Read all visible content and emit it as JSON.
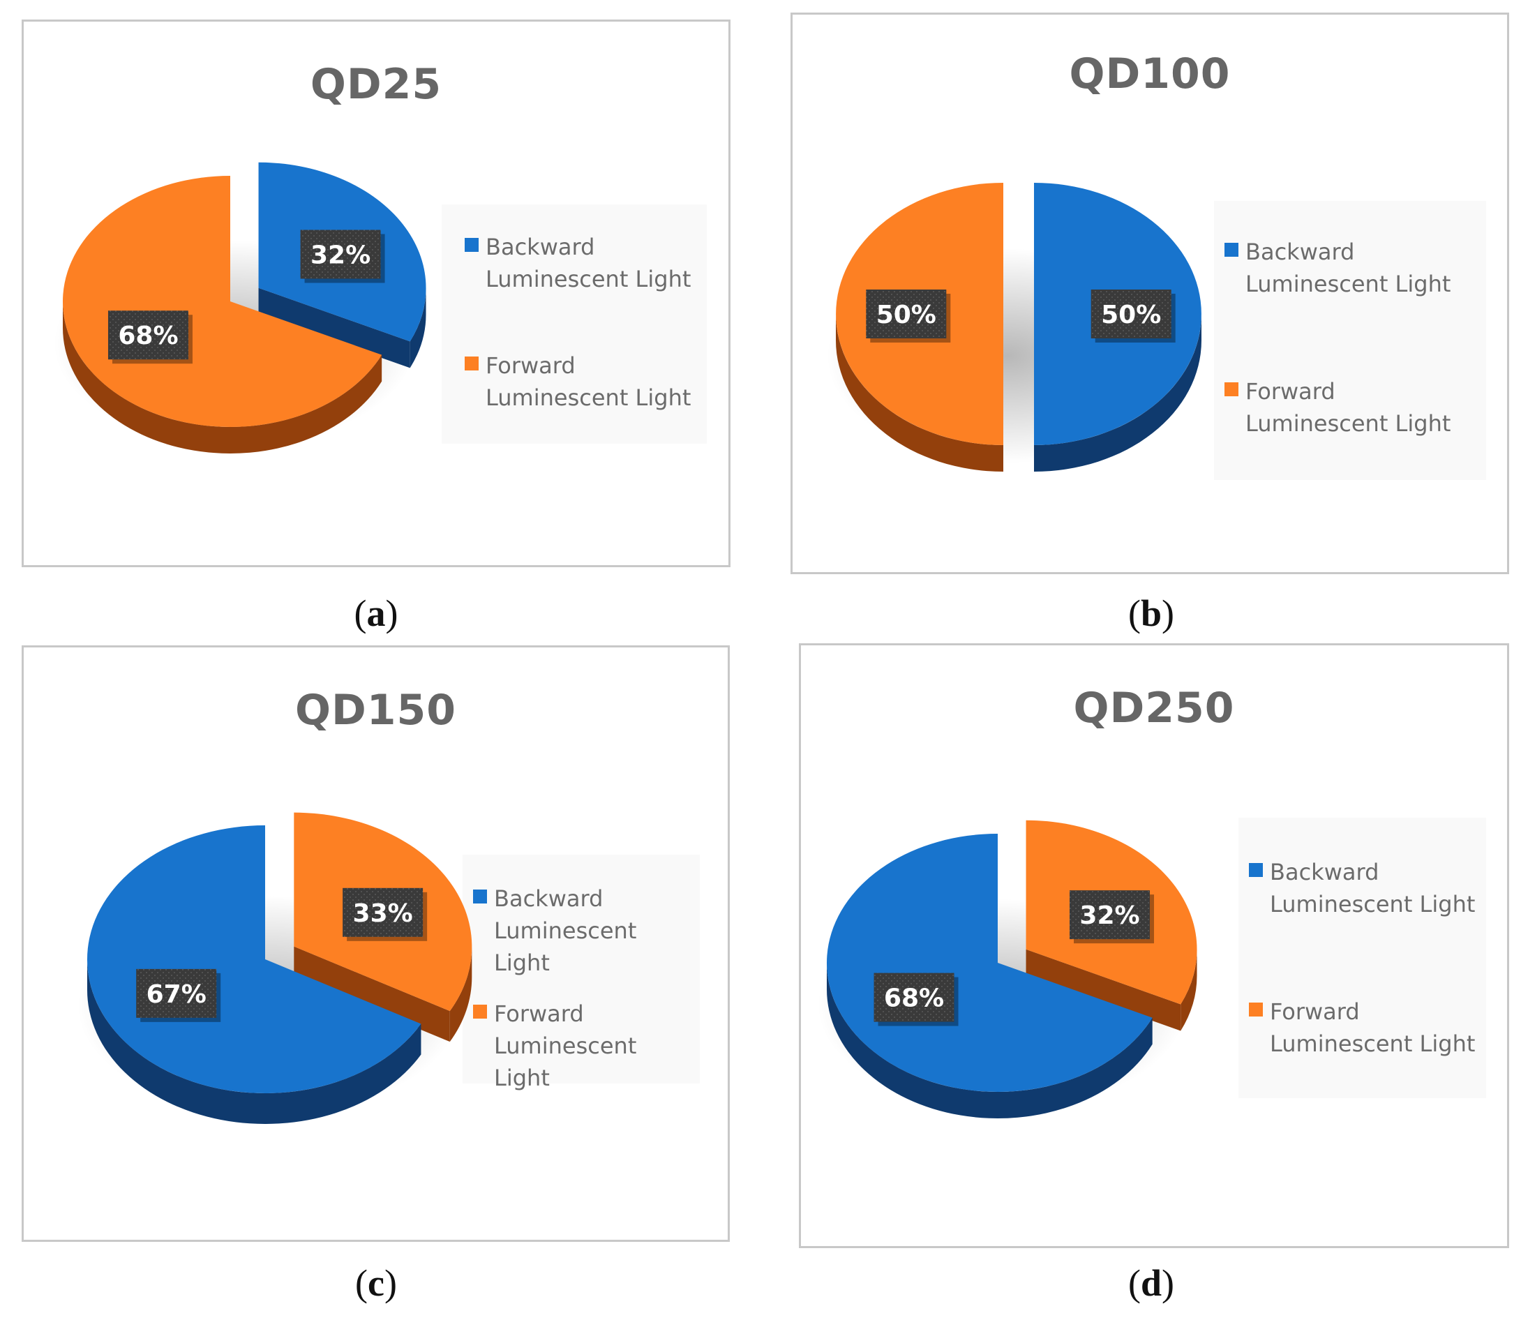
{
  "colors": {
    "blue": "#1874cd",
    "blue_side": "#0f3a6e",
    "orange": "#fd8023",
    "orange_side": "#93400c",
    "label_bg": "#3a3a3a"
  },
  "chart_data": [
    {
      "type": "pie",
      "title": "QD25",
      "caption": "a",
      "legend": [
        "Backward Luminescent Light",
        "Forward Luminescent Light"
      ],
      "legend_position": "right",
      "style": "3d-exploded",
      "slices": [
        {
          "name": "Backward Luminescent Light",
          "value": 32,
          "label": "32%",
          "color": "blue",
          "exploded": true
        },
        {
          "name": "Forward Luminescent Light",
          "value": 68,
          "label": "68%",
          "color": "orange",
          "exploded": false
        }
      ]
    },
    {
      "type": "pie",
      "title": "QD100",
      "caption": "b",
      "legend": [
        "Backward Luminescent Light",
        "Forward Luminescent Light"
      ],
      "legend_position": "right",
      "style": "3d-exploded",
      "slices": [
        {
          "name": "Backward Luminescent Light",
          "value": 50,
          "label": "50%",
          "color": "blue",
          "exploded": true
        },
        {
          "name": "Forward Luminescent Light",
          "value": 50,
          "label": "50%",
          "color": "orange",
          "exploded": false
        }
      ]
    },
    {
      "type": "pie",
      "title": "QD150",
      "caption": "c",
      "legend": [
        "Backward Luminescent Light",
        "Forward Luminescent Light"
      ],
      "legend_position": "right",
      "style": "3d-exploded",
      "slices": [
        {
          "name": "Forward Luminescent Light",
          "value": 33,
          "label": "33%",
          "color": "orange",
          "exploded": true
        },
        {
          "name": "Backward Luminescent Light",
          "value": 67,
          "label": "67%",
          "color": "blue",
          "exploded": false
        }
      ]
    },
    {
      "type": "pie",
      "title": "QD250",
      "caption": "d",
      "legend": [
        "Backward Luminescent Light",
        "Forward Luminescent Light"
      ],
      "legend_position": "right",
      "style": "3d-exploded",
      "slices": [
        {
          "name": "Forward Luminescent Light",
          "value": 32,
          "label": "32%",
          "color": "orange",
          "exploded": true
        },
        {
          "name": "Backward Luminescent Light",
          "value": 68,
          "label": "68%",
          "color": "blue",
          "exploded": false
        }
      ]
    }
  ]
}
